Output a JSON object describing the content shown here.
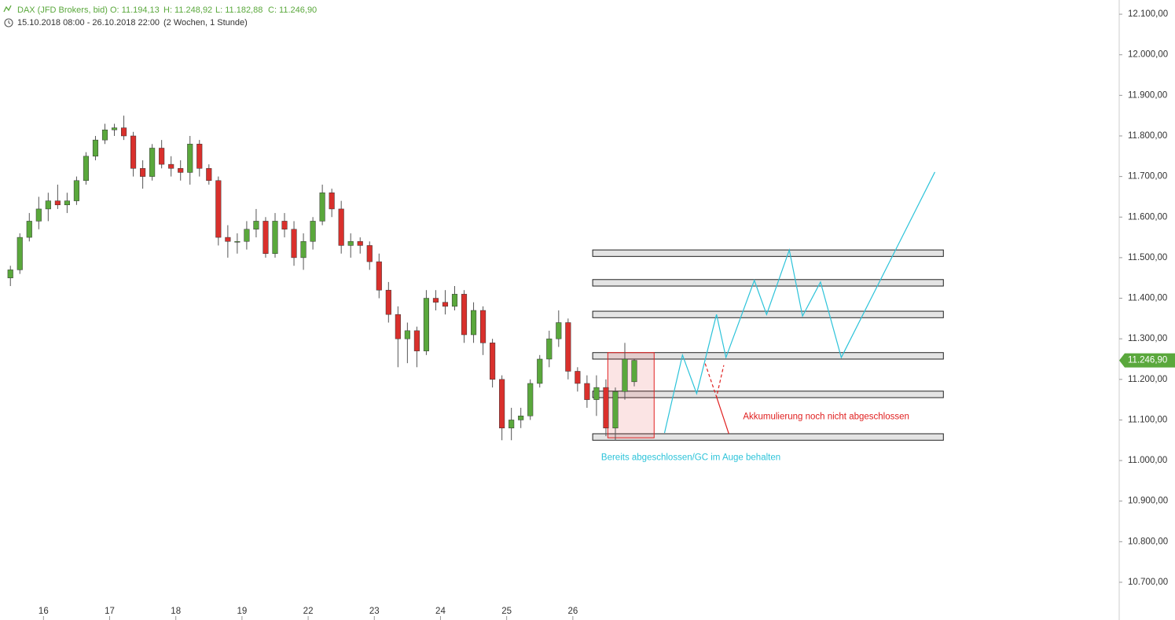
{
  "header": {
    "instrument": "DAX (JFD Brokers, bid)",
    "open": "O: 11.194,13",
    "high": "H: 11.248,92",
    "low": "L: 11.182,88",
    "close": "C: 11.246,90",
    "range": "15.10.2018 08:00 - 26.10.2018 22:00",
    "interval": "(2 Wochen, 1 Stunde)"
  },
  "chart_data": {
    "type": "candlestick",
    "up_color": "#5aa83c",
    "down_color": "#d9302c",
    "xlim": [
      -0.6,
      117.8
    ],
    "xticks": [
      {
        "value": 4,
        "label": "16"
      },
      {
        "value": 11,
        "label": "17"
      },
      {
        "value": 18,
        "label": "18"
      },
      {
        "value": 25,
        "label": "19"
      },
      {
        "value": 32,
        "label": "22"
      },
      {
        "value": 39,
        "label": "23"
      },
      {
        "value": 46,
        "label": "24"
      },
      {
        "value": 53,
        "label": "25"
      },
      {
        "value": 60,
        "label": "26"
      }
    ],
    "ylim": [
      10607,
      12135
    ],
    "yticks": [
      {
        "value": 12100,
        "label": "12.100,00"
      },
      {
        "value": 12000,
        "label": "12.000,00"
      },
      {
        "value": 11900,
        "label": "11.900,00"
      },
      {
        "value": 11800,
        "label": "11.800,00"
      },
      {
        "value": 11700,
        "label": "11.700,00"
      },
      {
        "value": 11600,
        "label": "11.600,00"
      },
      {
        "value": 11500,
        "label": "11.500,00"
      },
      {
        "value": 11400,
        "label": "11.400,00"
      },
      {
        "value": 11300,
        "label": "11.300,00"
      },
      {
        "value": 11200,
        "label": "11.200,00"
      },
      {
        "value": 11100,
        "label": "11.100,00"
      },
      {
        "value": 11000,
        "label": "11.000,00"
      },
      {
        "value": 10900,
        "label": "10.900,00"
      },
      {
        "value": 10800,
        "label": "10.800,00"
      },
      {
        "value": 10700,
        "label": "10.700,00"
      }
    ],
    "open": [
      11450,
      11470,
      11550,
      11590,
      11620,
      11640,
      11630,
      11640,
      11690,
      11750,
      11790,
      11815,
      11820,
      11800,
      11720,
      11700,
      11770,
      11730,
      11720,
      11710,
      11780,
      11720,
      11690,
      11550,
      11540,
      11540,
      11570,
      11590,
      11510,
      11590,
      11570,
      11500,
      11540,
      11590,
      11660,
      11620,
      11530,
      11540,
      11530,
      11490,
      11420,
      11360,
      11300,
      11320,
      11270,
      11400,
      11390,
      11380,
      11410,
      11310,
      11370,
      11290,
      11200,
      11080,
      11100,
      11110,
      11190,
      11250,
      11300,
      11340,
      11220,
      11190,
      11150,
      11180,
      11080,
      11170,
      11194.13
    ],
    "high": [
      11480,
      11560,
      11610,
      11650,
      11660,
      11680,
      11660,
      11700,
      11760,
      11800,
      11830,
      11830,
      11850,
      11810,
      11740,
      11780,
      11790,
      11750,
      11740,
      11800,
      11790,
      11730,
      11700,
      11580,
      11560,
      11590,
      11620,
      11600,
      11610,
      11610,
      11590,
      11560,
      11600,
      11680,
      11670,
      11640,
      11560,
      11550,
      11540,
      11510,
      11440,
      11380,
      11340,
      11330,
      11420,
      11420,
      11420,
      11430,
      11420,
      11390,
      11380,
      11300,
      11210,
      11130,
      11130,
      11200,
      11260,
      11320,
      11370,
      11350,
      11230,
      11210,
      11210,
      11200,
      11180,
      11290,
      11248.92
    ],
    "low": [
      11430,
      11460,
      11540,
      11570,
      11590,
      11620,
      11610,
      11630,
      11680,
      11740,
      11780,
      11800,
      11790,
      11700,
      11670,
      11690,
      11720,
      11700,
      11690,
      11680,
      11700,
      11680,
      11530,
      11500,
      11510,
      11520,
      11550,
      11500,
      11500,
      11550,
      11480,
      11470,
      11520,
      11580,
      11600,
      11510,
      11500,
      11510,
      11470,
      11400,
      11340,
      11230,
      11240,
      11230,
      11260,
      11370,
      11360,
      11370,
      11290,
      11290,
      11260,
      11180,
      11050,
      11050,
      11080,
      11100,
      11180,
      11230,
      11280,
      11200,
      11170,
      11130,
      11110,
      11060,
      11050,
      11150,
      11182.88
    ],
    "close": [
      11470,
      11550,
      11590,
      11620,
      11640,
      11630,
      11640,
      11690,
      11750,
      11790,
      11815,
      11820,
      11800,
      11720,
      11700,
      11770,
      11730,
      11720,
      11710,
      11780,
      11720,
      11690,
      11550,
      11540,
      11540,
      11570,
      11590,
      11510,
      11590,
      11570,
      11500,
      11540,
      11590,
      11660,
      11620,
      11530,
      11540,
      11530,
      11490,
      11420,
      11360,
      11300,
      11320,
      11270,
      11400,
      11390,
      11380,
      11410,
      11310,
      11370,
      11290,
      11200,
      11080,
      11100,
      11110,
      11190,
      11250,
      11300,
      11340,
      11220,
      11190,
      11150,
      11180,
      11080,
      11170,
      11250,
      11246.9
    ],
    "last_price": {
      "value": 11246.9,
      "label": "11.246,90"
    },
    "zones_x": [
      62.1,
      99.2
    ],
    "zones": [
      [
        11503,
        11519
      ],
      [
        11430,
        11446
      ],
      [
        11352,
        11368
      ],
      [
        11250,
        11266
      ],
      [
        11155,
        11171
      ],
      [
        11050,
        11066
      ]
    ],
    "box": {
      "x": [
        63.7,
        68.6
      ],
      "y": [
        11056,
        11266
      ],
      "color": "#e02020"
    },
    "paths": [
      {
        "color": "#2cc3d9",
        "dashed": false,
        "x": [
          69.7,
          71.6,
          73.1,
          75.2,
          76.2,
          79.2,
          80.5,
          82.9,
          84.3,
          86.2,
          88.4,
          98.3
        ],
        "y": [
          11068,
          11260,
          11165,
          11360,
          11254,
          11444,
          11360,
          11519,
          11356,
          11440,
          11254,
          11711
        ]
      },
      {
        "color": "#e02020",
        "dashed": true,
        "x": [
          74.0,
          75.2,
          75.97
        ],
        "y": [
          11239,
          11157,
          11235
        ]
      },
      {
        "color": "#e02020",
        "dashed": false,
        "x": [
          75.2,
          76.5
        ],
        "y": [
          11157,
          11066
        ]
      }
    ],
    "annotations": [
      {
        "text": "Akkumulierung noch nicht abgeschlossen",
        "color": "#e02020",
        "x": 78.0,
        "y": 11108
      },
      {
        "text": "Bereits abgeschlossen/GC im Auge behalten",
        "color": "#2cc3d9",
        "x": 63.0,
        "y": 11007
      }
    ]
  }
}
